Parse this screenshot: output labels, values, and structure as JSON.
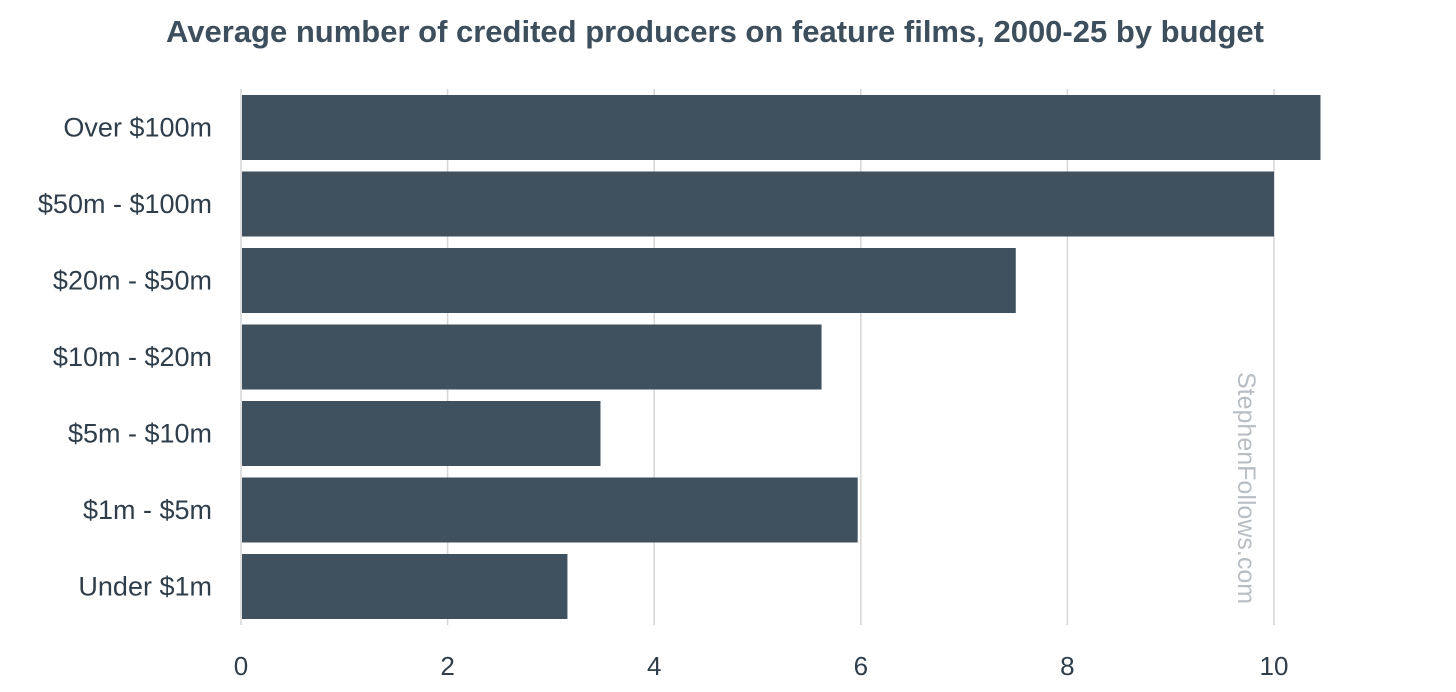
{
  "chart_data": {
    "type": "bar",
    "orientation": "horizontal",
    "title": "Average number of credited producers on feature films, 2000-25 by budget",
    "categories": [
      "Over $100m",
      "$50m - $100m",
      "$20m - $50m",
      "$10m - $20m",
      "$5m - $10m",
      "$1m - $5m",
      "Under $1m"
    ],
    "values": [
      10.45,
      10.0,
      7.5,
      5.62,
      3.48,
      5.97,
      3.16
    ],
    "xlim": [
      0,
      10.5
    ],
    "xticks": [
      0,
      2,
      4,
      6,
      8,
      10
    ],
    "xlabel": "",
    "ylabel": "",
    "grid": true,
    "legend": "none",
    "bar_color": "#3f505e",
    "grid_color": "#d6d6d6",
    "watermark": "StephenFollows.com"
  }
}
